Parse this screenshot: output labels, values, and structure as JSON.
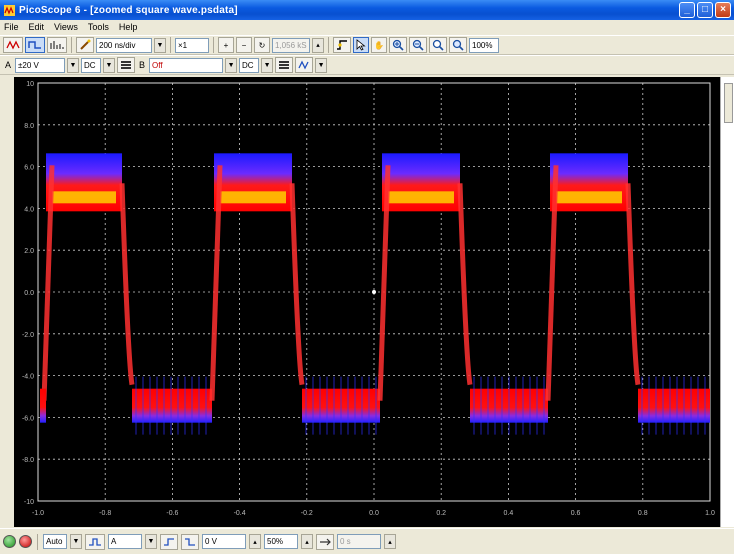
{
  "window": {
    "title": "PicoScope 6 - [zoomed square wave.psdata]",
    "controls": [
      "_",
      "□",
      "×"
    ]
  },
  "menu": [
    "File",
    "Edit",
    "Views",
    "Tools",
    "Help"
  ],
  "toolbar1": {
    "timebase": "200 ns/div",
    "zoom_factor": "×1",
    "samples": "1,056 kS",
    "zoom_percent": "100%"
  },
  "toolbar2": {
    "channel_a_label": "A",
    "channel_a_range": "±20 V",
    "channel_a_coupling": "DC",
    "channel_b_label": "B",
    "channel_b_range": "Off",
    "channel_b_coupling": "DC"
  },
  "scope": {
    "y_labels": [
      "10",
      "8.0",
      "6.0",
      "4.0",
      "2.0",
      "0.0",
      "-2.0",
      "-4.0",
      "-6.0",
      "-8.0",
      "-10"
    ],
    "x_labels": [
      "-1.0",
      "-0.8",
      "-0.6",
      "-0.4",
      "-0.2",
      "0.0",
      "0.2",
      "0.4",
      "0.6",
      "0.8",
      "1.0"
    ],
    "colors": {
      "background": "#000000",
      "grid": "#cccccc",
      "trace_high": "#ff2020",
      "trace_blue": "#3030ff",
      "trace_yellow": "#ffd000"
    }
  },
  "statusbar": {
    "trigger_mode": "Auto",
    "trigger_source": "A",
    "threshold": "0 V",
    "pre_trigger": "50%",
    "delay": "0 s"
  }
}
